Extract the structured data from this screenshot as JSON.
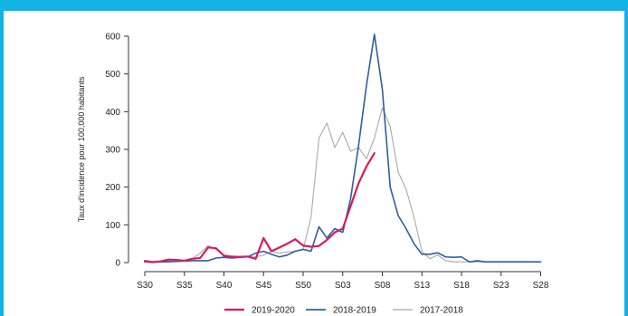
{
  "chart_data": {
    "type": "line",
    "ylabel": "Taux d'incidence pour 100,000 habitants",
    "ylim": [
      0,
      600
    ],
    "yticks": [
      0,
      100,
      200,
      300,
      400,
      500,
      600
    ],
    "xticks": [
      "S30",
      "S35",
      "S40",
      "S45",
      "S50",
      "S03",
      "S08",
      "S13",
      "S18",
      "S23",
      "S28"
    ],
    "legend_position": "bottom",
    "grid": false,
    "series": [
      {
        "name": "2017-2018",
        "color": "#a9a9a9",
        "values": [
          4,
          3,
          3,
          5,
          7,
          4,
          10,
          25,
          45,
          35,
          20,
          18,
          16,
          15,
          15,
          20,
          30,
          25,
          28,
          30,
          35,
          120,
          330,
          370,
          305,
          345,
          295,
          305,
          275,
          330,
          410,
          360,
          240,
          195,
          120,
          30,
          10,
          20,
          5,
          2,
          2,
          2,
          2,
          2,
          2,
          2,
          2,
          2,
          2,
          2,
          2
        ]
      },
      {
        "name": "2018-2019",
        "color": "#2e5f9e",
        "values": [
          5,
          2,
          2,
          2,
          3,
          4,
          5,
          5,
          5,
          12,
          14,
          12,
          14,
          15,
          25,
          30,
          22,
          15,
          20,
          30,
          35,
          30,
          95,
          65,
          90,
          80,
          170,
          310,
          470,
          605,
          460,
          200,
          125,
          90,
          50,
          22,
          22,
          26,
          15,
          14,
          15,
          2,
          5,
          2,
          2,
          2,
          2,
          2,
          2,
          2,
          2
        ]
      },
      {
        "name": "2019-2020",
        "color": "#d81b60",
        "values": [
          3,
          1,
          3,
          8,
          7,
          5,
          10,
          12,
          40,
          38,
          18,
          15,
          15,
          16,
          10,
          65,
          30,
          40,
          50,
          62,
          45,
          42,
          44,
          60,
          80,
          90,
          150,
          210,
          255,
          290
        ]
      }
    ]
  }
}
